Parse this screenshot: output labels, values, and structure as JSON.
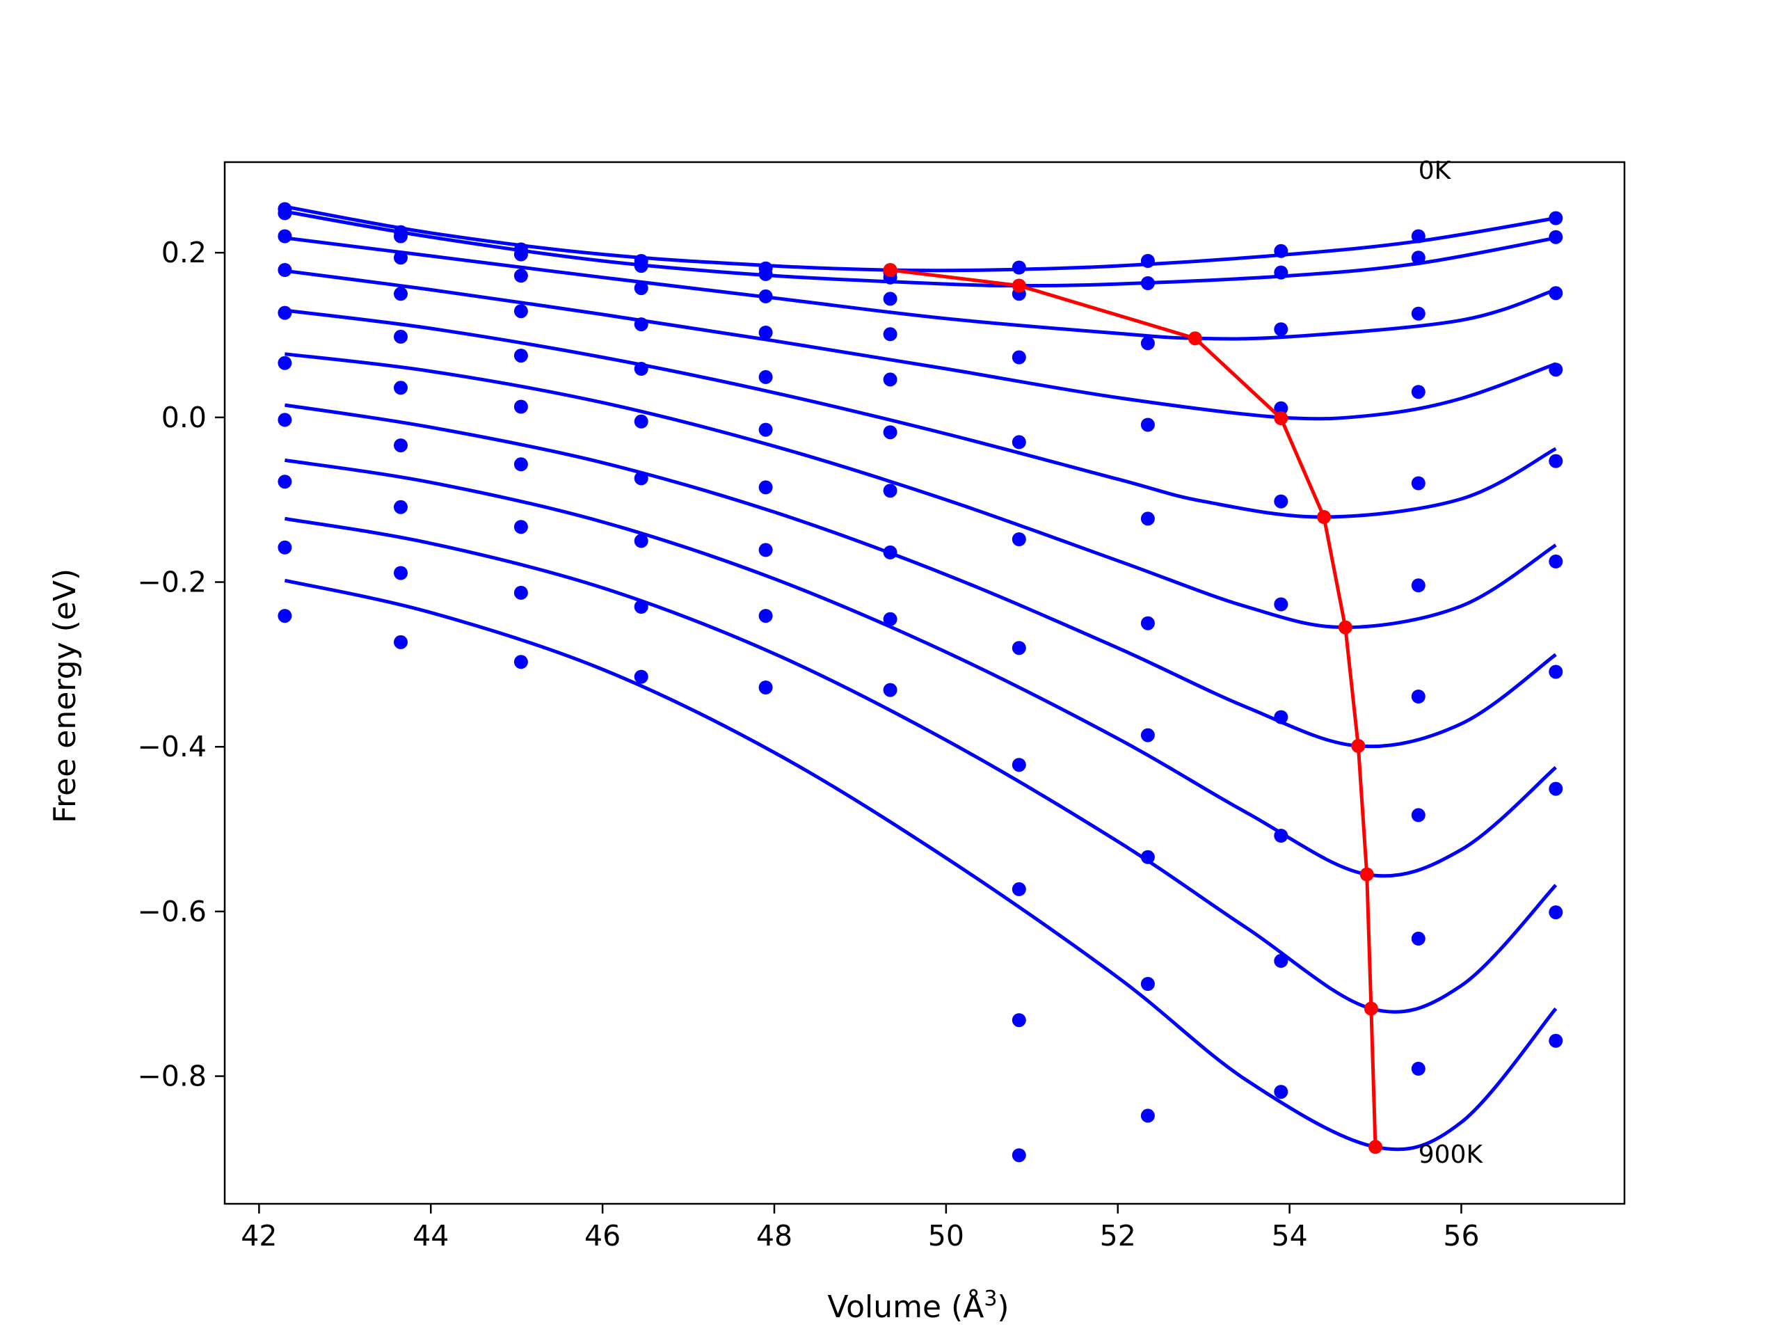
{
  "chart_data": {
    "type": "scatter",
    "title": "",
    "xlabel": "Volume (Å",
    "xlabel_sup": "3",
    "xlabel_close": ")",
    "ylabel": "Free energy (eV)",
    "xlim": [
      41.6,
      57.9
    ],
    "ylim": [
      -0.955,
      0.31
    ],
    "xticks": [
      42,
      44,
      46,
      48,
      50,
      52,
      54,
      56
    ],
    "xtick_labels": [
      "42",
      "44",
      "46",
      "48",
      "50",
      "52",
      "54",
      "56"
    ],
    "yticks": [
      -0.8,
      -0.6,
      -0.4,
      -0.2,
      0.0,
      0.2
    ],
    "ytick_labels": [
      "−0.8",
      "−0.6",
      "−0.4",
      "−0.2",
      "0.0",
      "0.2"
    ],
    "grid": false,
    "series_color": "#0000ff",
    "minimum_line_color": "#ff0000",
    "annotations": [
      {
        "text": "0K",
        "x": 55.5,
        "y": 0.3
      },
      {
        "text": "900K",
        "x": 55.5,
        "y": -0.895
      }
    ],
    "volumes": [
      42.3,
      43.65,
      45.05,
      46.45,
      47.9,
      49.35,
      50.85,
      52.35,
      53.9,
      55.5,
      57.1
    ],
    "energy_points": [
      [
        0.253,
        0.225,
        0.204,
        0.19,
        0.181,
        0.176,
        0.182,
        0.19,
        0.202,
        0.22,
        0.242
      ],
      [
        0.248,
        0.22,
        0.198,
        0.184,
        0.174,
        0.17,
        0.15,
        0.163,
        0.176,
        0.194,
        0.219
      ],
      [
        0.22,
        0.194,
        0.172,
        0.157,
        0.147,
        0.144,
        0.073,
        0.09,
        0.107,
        0.126,
        0.151
      ],
      [
        0.179,
        0.15,
        0.129,
        0.113,
        0.103,
        0.101,
        -0.03,
        -0.009,
        0.011,
        0.031,
        0.058
      ],
      [
        0.127,
        0.098,
        0.075,
        0.059,
        0.049,
        0.046,
        -0.148,
        -0.123,
        -0.102,
        -0.08,
        -0.053
      ],
      [
        0.066,
        0.036,
        0.013,
        -0.005,
        -0.015,
        -0.018,
        -0.28,
        -0.25,
        -0.227,
        -0.204,
        -0.175
      ],
      [
        -0.003,
        -0.034,
        -0.057,
        -0.074,
        -0.085,
        -0.089,
        -0.422,
        -0.386,
        -0.364,
        -0.339,
        -0.309
      ],
      [
        -0.078,
        -0.109,
        -0.133,
        -0.15,
        -0.161,
        -0.164,
        -0.573,
        -0.534,
        -0.508,
        -0.483,
        -0.451
      ],
      [
        -0.158,
        -0.189,
        -0.213,
        -0.23,
        -0.241,
        -0.245,
        -0.732,
        -0.688,
        -0.66,
        -0.633,
        -0.601
      ],
      [
        -0.241,
        -0.273,
        -0.297,
        -0.315,
        -0.328,
        -0.331,
        -0.896,
        -0.848,
        -0.819,
        -0.791,
        -0.757
      ]
    ],
    "fit_curves": [
      {
        "x": [
          42.3,
          44,
          46,
          48,
          49.3,
          50.5,
          52,
          54,
          55.5,
          57.1
        ],
        "y": [
          0.256,
          0.224,
          0.198,
          0.184,
          0.179,
          0.179,
          0.184,
          0.198,
          0.214,
          0.242
        ]
      },
      {
        "x": [
          42.3,
          44,
          46,
          48,
          50,
          50.85,
          52,
          54,
          55.5,
          57.1
        ],
        "y": [
          0.25,
          0.219,
          0.19,
          0.172,
          0.162,
          0.16,
          0.162,
          0.172,
          0.187,
          0.218
        ]
      },
      {
        "x": [
          42.3,
          44,
          46,
          48,
          50,
          52,
          52.9,
          54,
          56,
          57.1
        ],
        "y": [
          0.218,
          0.196,
          0.17,
          0.145,
          0.12,
          0.102,
          0.096,
          0.098,
          0.118,
          0.155
        ]
      },
      {
        "x": [
          42.3,
          44,
          46,
          48,
          50,
          52,
          53.9,
          55,
          56,
          57.1
        ],
        "y": [
          0.178,
          0.155,
          0.125,
          0.093,
          0.059,
          0.024,
          0.0,
          0.003,
          0.023,
          0.065
        ]
      },
      {
        "x": [
          42.3,
          44,
          46,
          48,
          50,
          52,
          53,
          54.4,
          56,
          57.1
        ],
        "y": [
          0.13,
          0.108,
          0.073,
          0.03,
          -0.02,
          -0.075,
          -0.102,
          -0.121,
          -0.099,
          -0.038
        ]
      },
      {
        "x": [
          42.3,
          44,
          46,
          48,
          50,
          52,
          53.5,
          54.65,
          56,
          57.1
        ],
        "y": [
          0.077,
          0.056,
          0.018,
          -0.035,
          -0.1,
          -0.174,
          -0.23,
          -0.255,
          -0.229,
          -0.155
        ]
      },
      {
        "x": [
          42.3,
          44,
          46,
          48,
          50,
          52,
          53.5,
          54.8,
          56,
          57.1
        ],
        "y": [
          0.015,
          -0.012,
          -0.055,
          -0.115,
          -0.191,
          -0.28,
          -0.352,
          -0.399,
          -0.372,
          -0.288
        ]
      },
      {
        "x": [
          42.3,
          44,
          46,
          48,
          50,
          52,
          53.5,
          54.9,
          56,
          57.1
        ],
        "y": [
          -0.052,
          -0.079,
          -0.127,
          -0.196,
          -0.285,
          -0.39,
          -0.48,
          -0.555,
          -0.525,
          -0.425
        ]
      },
      {
        "x": [
          42.3,
          44,
          46,
          48,
          50,
          52,
          53.5,
          54.95,
          56,
          57.1
        ],
        "y": [
          -0.123,
          -0.153,
          -0.207,
          -0.287,
          -0.392,
          -0.515,
          -0.62,
          -0.718,
          -0.69,
          -0.568
        ]
      },
      {
        "x": [
          42.3,
          44,
          46,
          48,
          50,
          52,
          53.5,
          55.0,
          56,
          57.1
        ],
        "y": [
          -0.198,
          -0.237,
          -0.306,
          -0.407,
          -0.535,
          -0.68,
          -0.805,
          -0.886,
          -0.856,
          -0.718
        ]
      }
    ],
    "minimum_line": {
      "x": [
        49.35,
        50.85,
        52.9,
        53.9,
        54.4,
        54.65,
        54.8,
        54.9,
        54.95,
        55.0
      ],
      "y": [
        0.179,
        0.16,
        0.096,
        -0.001,
        -0.121,
        -0.255,
        -0.399,
        -0.555,
        -0.718,
        -0.886
      ]
    }
  }
}
